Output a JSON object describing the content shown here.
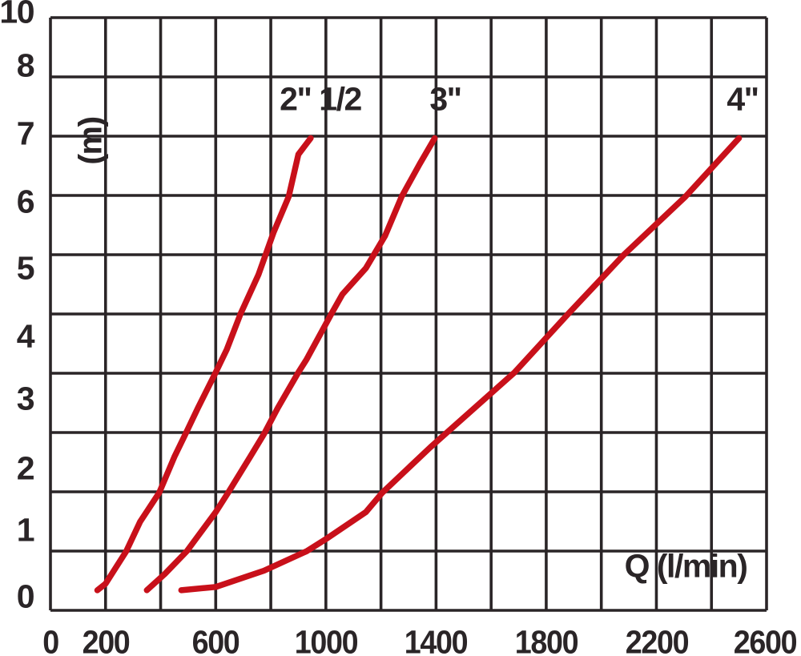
{
  "axes": {
    "x": {
      "unit_label": "Q (l/min)",
      "ticks": [
        "0",
        "200",
        "600",
        "1000",
        "1400",
        "1800",
        "2200",
        "2600"
      ]
    },
    "y": {
      "unit_label": "(m)",
      "ticks": [
        "10",
        "8",
        "7",
        "6",
        "5",
        "4",
        "3",
        "2",
        "1",
        "0"
      ]
    }
  },
  "curve_labels": [
    "2\" 1/2",
    "3\"",
    "4\""
  ],
  "colors": {
    "curve_red": "#c8101a",
    "grid_black": "#2a2527"
  },
  "chart_data": {
    "type": "line",
    "title": "",
    "xlabel": "Q (l/min)",
    "ylabel": "(m)",
    "xlim": [
      0,
      2600
    ],
    "ylim": [
      0,
      10
    ],
    "x_ticks_labeled": [
      0,
      200,
      600,
      1000,
      1400,
      1800,
      2200,
      2600
    ],
    "y_ticks_labeled": [
      10,
      8,
      7,
      6,
      5,
      4,
      3,
      2,
      1,
      0
    ],
    "grid": true,
    "grid_cell": {
      "x_per_cell": 200,
      "y_per_cell": 1
    },
    "legend_position": "labels-above-curve-tops",
    "series": [
      {
        "name": "2\" 1/2",
        "points": [
          [
            170,
            0.1
          ],
          [
            200,
            0.2
          ],
          [
            275,
            0.7
          ],
          [
            325,
            1.15
          ],
          [
            395,
            1.6
          ],
          [
            450,
            2.15
          ],
          [
            490,
            2.5
          ],
          [
            535,
            2.9
          ],
          [
            600,
            3.45
          ],
          [
            640,
            3.8
          ],
          [
            690,
            4.35
          ],
          [
            755,
            4.95
          ],
          [
            810,
            5.6
          ],
          [
            865,
            6.15
          ],
          [
            900,
            6.8
          ],
          [
            945,
            7.05
          ]
        ]
      },
      {
        "name": "3\"",
        "points": [
          [
            350,
            0.1
          ],
          [
            415,
            0.35
          ],
          [
            495,
            0.7
          ],
          [
            600,
            1.3
          ],
          [
            645,
            1.6
          ],
          [
            725,
            2.15
          ],
          [
            775,
            2.5
          ],
          [
            825,
            2.9
          ],
          [
            900,
            3.45
          ],
          [
            930,
            3.65
          ],
          [
            1020,
            4.35
          ],
          [
            1060,
            4.65
          ],
          [
            1145,
            5.05
          ],
          [
            1215,
            5.55
          ],
          [
            1275,
            6.15
          ],
          [
            1340,
            6.65
          ],
          [
            1395,
            7.05
          ]
        ]
      },
      {
        "name": "4\"",
        "points": [
          [
            475,
            0.1
          ],
          [
            600,
            0.15
          ],
          [
            775,
            0.4
          ],
          [
            930,
            0.7
          ],
          [
            1005,
            0.9
          ],
          [
            1145,
            1.3
          ],
          [
            1205,
            1.6
          ],
          [
            1380,
            2.3
          ],
          [
            1685,
            3.45
          ],
          [
            1880,
            4.35
          ],
          [
            2080,
            5.25
          ],
          [
            2305,
            6.15
          ],
          [
            2500,
            7.05
          ]
        ]
      }
    ]
  }
}
